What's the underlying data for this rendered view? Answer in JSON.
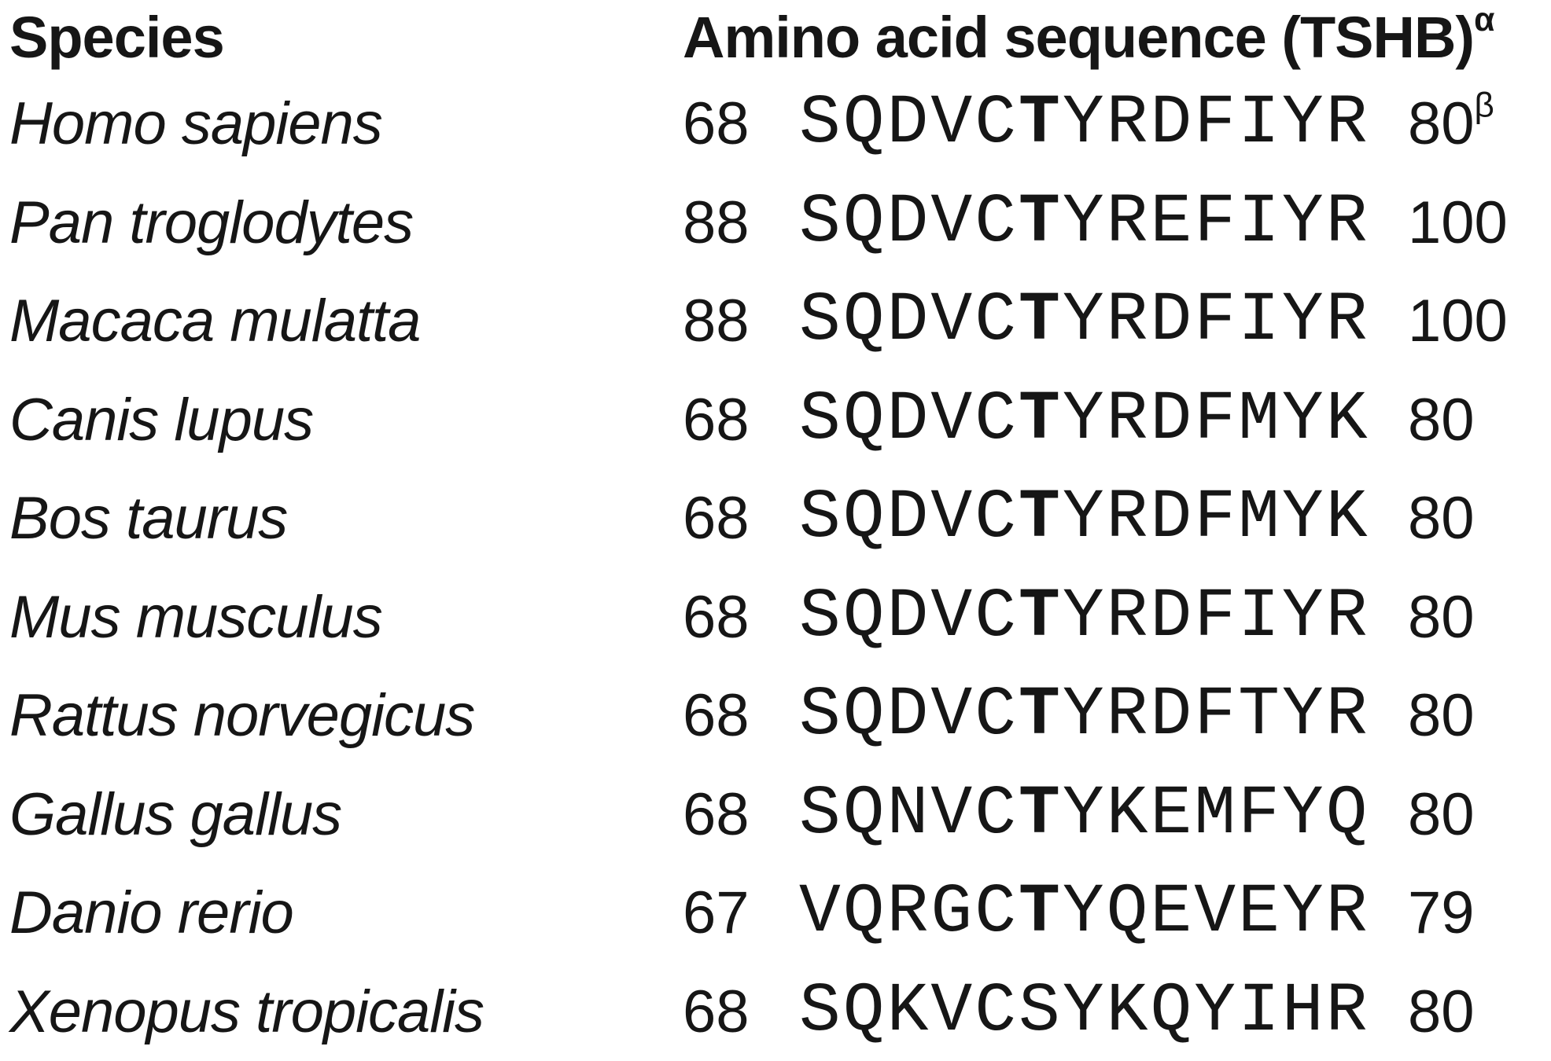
{
  "figure": {
    "type": "sequence-alignment-table",
    "colors": {
      "text": "#161616",
      "background": "#ffffff"
    },
    "header": {
      "species_label": "Species",
      "sequence_label": "Amino acid sequence (TSHB)",
      "sequence_superscript": "α"
    },
    "rows": [
      {
        "species": "Homo sapiens",
        "start": "68",
        "seq_before": "SQDVC",
        "seq_bold": "T",
        "seq_after": "YRDFIYR",
        "end": "80",
        "end_superscript": "β"
      },
      {
        "species": "Pan troglodytes",
        "start": "88",
        "seq_before": "SQDVC",
        "seq_bold": "T",
        "seq_after": "YREFIYR",
        "end": "100",
        "end_superscript": ""
      },
      {
        "species": "Macaca mulatta",
        "start": "88",
        "seq_before": "SQDVC",
        "seq_bold": "T",
        "seq_after": "YRDFIYR",
        "end": "100",
        "end_superscript": ""
      },
      {
        "species": "Canis lupus",
        "start": "68",
        "seq_before": "SQDVC",
        "seq_bold": "T",
        "seq_after": "YRDFMYK",
        "end": "80",
        "end_superscript": ""
      },
      {
        "species": "Bos taurus",
        "start": "68",
        "seq_before": "SQDVC",
        "seq_bold": "T",
        "seq_after": "YRDFMYK",
        "end": "80",
        "end_superscript": ""
      },
      {
        "species": "Mus musculus",
        "start": "68",
        "seq_before": "SQDVC",
        "seq_bold": "T",
        "seq_after": "YRDFIYR",
        "end": "80",
        "end_superscript": ""
      },
      {
        "species": "Rattus norvegicus",
        "start": "68",
        "seq_before": "SQDVC",
        "seq_bold": "T",
        "seq_after": "YRDFTYR",
        "end": "80",
        "end_superscript": ""
      },
      {
        "species": "Gallus gallus",
        "start": "68",
        "seq_before": "SQNVC",
        "seq_bold": "T",
        "seq_after": "YKEMFYQ",
        "end": "80",
        "end_superscript": ""
      },
      {
        "species": "Danio rerio",
        "start": "67",
        "seq_before": "VQRGC",
        "seq_bold": "T",
        "seq_after": "YQEVEYR",
        "end": "79",
        "end_superscript": ""
      },
      {
        "species": "Xenopus tropicalis",
        "start": "68",
        "seq_before": "SQKVCSYKQYIHR",
        "seq_bold": "",
        "seq_after": "",
        "end": "80",
        "end_superscript": ""
      }
    ]
  }
}
